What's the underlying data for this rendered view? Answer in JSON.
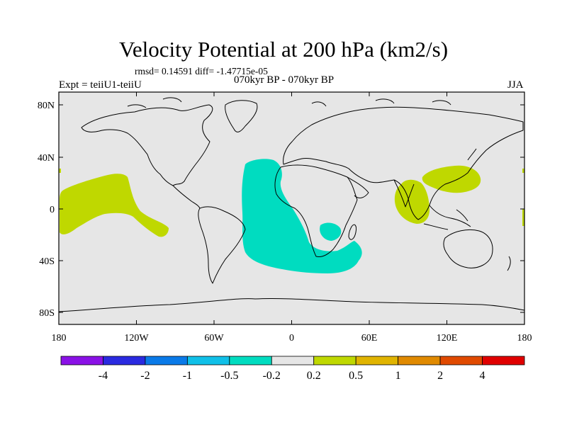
{
  "header": {
    "title": "Velocity Potential at 200 hPa (km2/s)",
    "stats": "rmsd= 0.14591 diff= -1.47715e-05",
    "period": "070kyr BP - 070kyr BP",
    "experiment": "Expt = teiiU1-teiiU",
    "season": "JJA"
  },
  "map": {
    "projection": "cylindrical equidistant",
    "background_color": "#e6e6e6",
    "lat_ticks": [
      "80N",
      "40N",
      "0",
      "40S",
      "80S"
    ],
    "lon_ticks": [
      "180",
      "120W",
      "60W",
      "0",
      "60E",
      "120E",
      "180"
    ],
    "features": [
      {
        "name": "central-pacific-positive-anomaly",
        "level": "0.2 to 0.5",
        "color": "#bfd800"
      },
      {
        "name": "atlantic-africa-negative-anomaly",
        "level": "-0.5 to -0.2",
        "color": "#00dcc0"
      },
      {
        "name": "mozambique-channel-negative-anomaly",
        "level": "-0.5 to -0.2",
        "color": "#00dcc0"
      },
      {
        "name": "bay-of-bengal-positive-anomaly",
        "level": "0.2 to 0.5",
        "color": "#bfd800"
      },
      {
        "name": "western-pacific-positive-anomaly",
        "level": "0.2 to 0.5",
        "color": "#bfd800"
      }
    ]
  },
  "colorbar": {
    "colors": [
      "#8a11e6",
      "#2a2ae0",
      "#0a7ae8",
      "#10c0e8",
      "#00dcc0",
      "#e6e6e6",
      "#bfd800",
      "#e0b400",
      "#e08a00",
      "#e04a00",
      "#e00000"
    ],
    "labels": [
      "-4",
      "-2",
      "-1",
      "-0.5",
      "-0.2",
      "0.2",
      "0.5",
      "1",
      "2",
      "4"
    ]
  }
}
